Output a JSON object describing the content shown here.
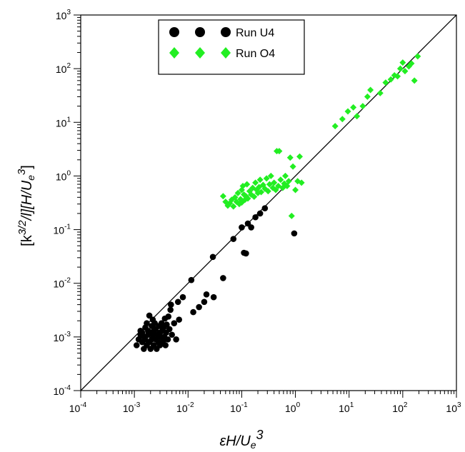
{
  "chart_data": {
    "type": "scatter",
    "xscale": "log",
    "yscale": "log",
    "xlim": [
      0.0001,
      1000
    ],
    "ylim": [
      0.0001,
      1000
    ],
    "x_ticks": [
      {
        "base": "10",
        "exp": "-4"
      },
      {
        "base": "10",
        "exp": "-3"
      },
      {
        "base": "10",
        "exp": "-2"
      },
      {
        "base": "10",
        "exp": "-1"
      },
      {
        "base": "10",
        "exp": "0"
      },
      {
        "base": "10",
        "exp": "1"
      },
      {
        "base": "10",
        "exp": "2"
      },
      {
        "base": "10",
        "exp": "3"
      }
    ],
    "y_ticks": [
      {
        "base": "10",
        "exp": "-4"
      },
      {
        "base": "10",
        "exp": "-3"
      },
      {
        "base": "10",
        "exp": "-2"
      },
      {
        "base": "10",
        "exp": "-1"
      },
      {
        "base": "10",
        "exp": "0"
      },
      {
        "base": "10",
        "exp": "1"
      },
      {
        "base": "10",
        "exp": "2"
      },
      {
        "base": "10",
        "exp": "3"
      }
    ],
    "xlabel": {
      "part1": "εH/U",
      "part2": "e",
      "part3": "3"
    },
    "ylabel": {
      "part1": "[k",
      "part2": "3/2",
      "part3": "/l][H/U",
      "part4": "e",
      "part5": "3",
      "part6": "]"
    },
    "reference_line": {
      "x": [
        0.0001,
        1000
      ],
      "y": [
        0.0001,
        1000
      ]
    },
    "legend_position": "top-left",
    "series": [
      {
        "name": "Run U4",
        "marker": "circle",
        "color": "#000000",
        "points": [
          [
            0.0011,
            0.0007
          ],
          [
            0.0012,
            0.0009
          ],
          [
            0.0013,
            0.0011
          ],
          [
            0.0013,
            0.0013
          ],
          [
            0.0014,
            0.0008
          ],
          [
            0.0014,
            0.0012
          ],
          [
            0.0015,
            0.0006
          ],
          [
            0.0015,
            0.001
          ],
          [
            0.0016,
            0.0015
          ],
          [
            0.0016,
            0.0009
          ],
          [
            0.0017,
            0.0018
          ],
          [
            0.0017,
            0.0007
          ],
          [
            0.0018,
            0.0011
          ],
          [
            0.0018,
            0.0013
          ],
          [
            0.0019,
            0.0008
          ],
          [
            0.0019,
            0.0025
          ],
          [
            0.002,
            0.0012
          ],
          [
            0.002,
            0.0006
          ],
          [
            0.0021,
            0.0016
          ],
          [
            0.0021,
            0.0009
          ],
          [
            0.0022,
            0.0021
          ],
          [
            0.0022,
            0.0011
          ],
          [
            0.0023,
            0.0007
          ],
          [
            0.0023,
            0.0013
          ],
          [
            0.0024,
            0.0018
          ],
          [
            0.0025,
            0.0009
          ],
          [
            0.0025,
            0.0014
          ],
          [
            0.0026,
            0.0006
          ],
          [
            0.0027,
            0.0011
          ],
          [
            0.0028,
            0.0008
          ],
          [
            0.0029,
            0.0016
          ],
          [
            0.003,
            0.0012
          ],
          [
            0.003,
            0.0007
          ],
          [
            0.0031,
            0.001
          ],
          [
            0.0032,
            0.0018
          ],
          [
            0.0033,
            0.0013
          ],
          [
            0.0034,
            0.0008
          ],
          [
            0.0035,
            0.0015
          ],
          [
            0.0036,
            0.001
          ],
          [
            0.0037,
            0.0022
          ],
          [
            0.0038,
            0.0007
          ],
          [
            0.0039,
            0.0012
          ],
          [
            0.004,
            0.0017
          ],
          [
            0.0042,
            0.0009
          ],
          [
            0.0043,
            0.0024
          ],
          [
            0.0045,
            0.0014
          ],
          [
            0.0047,
            0.0032
          ],
          [
            0.0048,
            0.004
          ],
          [
            0.005,
            0.0011
          ],
          [
            0.0055,
            0.0018
          ],
          [
            0.006,
            0.0009
          ],
          [
            0.0065,
            0.0045
          ],
          [
            0.0068,
            0.0021
          ],
          [
            0.008,
            0.0055
          ],
          [
            0.0115,
            0.0115
          ],
          [
            0.0125,
            0.0029
          ],
          [
            0.016,
            0.0036
          ],
          [
            0.02,
            0.0045
          ],
          [
            0.022,
            0.0062
          ],
          [
            0.029,
            0.031
          ],
          [
            0.03,
            0.0055
          ],
          [
            0.045,
            0.0125
          ],
          [
            0.07,
            0.067
          ],
          [
            0.1,
            0.11
          ],
          [
            0.11,
            0.037
          ],
          [
            0.12,
            0.036
          ],
          [
            0.13,
            0.13
          ],
          [
            0.15,
            0.11
          ],
          [
            0.18,
            0.17
          ],
          [
            0.22,
            0.2
          ],
          [
            0.27,
            0.25
          ],
          [
            0.95,
            0.085
          ]
        ]
      },
      {
        "name": "Run O4",
        "marker": "diamond",
        "color": "#22ee22",
        "points": [
          [
            0.045,
            0.42
          ],
          [
            0.05,
            0.33
          ],
          [
            0.055,
            0.28
          ],
          [
            0.06,
            0.31
          ],
          [
            0.065,
            0.36
          ],
          [
            0.07,
            0.27
          ],
          [
            0.075,
            0.4
          ],
          [
            0.08,
            0.33
          ],
          [
            0.085,
            0.48
          ],
          [
            0.09,
            0.3
          ],
          [
            0.095,
            0.37
          ],
          [
            0.1,
            0.55
          ],
          [
            0.1,
            0.32
          ],
          [
            0.105,
            0.65
          ],
          [
            0.11,
            0.45
          ],
          [
            0.115,
            0.36
          ],
          [
            0.12,
            0.42
          ],
          [
            0.125,
            0.7
          ],
          [
            0.13,
            0.38
          ],
          [
            0.14,
            0.52
          ],
          [
            0.15,
            0.45
          ],
          [
            0.16,
            0.6
          ],
          [
            0.17,
            0.41
          ],
          [
            0.18,
            0.75
          ],
          [
            0.19,
            0.55
          ],
          [
            0.2,
            0.48
          ],
          [
            0.21,
            0.62
          ],
          [
            0.22,
            0.85
          ],
          [
            0.23,
            0.5
          ],
          [
            0.25,
            0.68
          ],
          [
            0.27,
            0.58
          ],
          [
            0.29,
            0.9
          ],
          [
            0.31,
            0.52
          ],
          [
            0.33,
            0.7
          ],
          [
            0.35,
            1.0
          ],
          [
            0.38,
            0.6
          ],
          [
            0.4,
            0.75
          ],
          [
            0.43,
            0.55
          ],
          [
            0.45,
            2.9
          ],
          [
            0.48,
            0.65
          ],
          [
            0.5,
            2.9
          ],
          [
            0.53,
            0.85
          ],
          [
            0.58,
            0.6
          ],
          [
            0.62,
            0.72
          ],
          [
            0.65,
            1.0
          ],
          [
            0.7,
            0.65
          ],
          [
            0.75,
            0.8
          ],
          [
            0.8,
            2.2
          ],
          [
            0.85,
            0.18
          ],
          [
            0.9,
            1.5
          ],
          [
            1.0,
            0.55
          ],
          [
            1.1,
            0.8
          ],
          [
            1.2,
            2.3
          ],
          [
            1.3,
            0.75
          ],
          [
            5.5,
            8.5
          ],
          [
            7.5,
            11.5
          ],
          [
            9.5,
            16
          ],
          [
            12,
            19
          ],
          [
            14,
            13
          ],
          [
            18,
            20
          ],
          [
            22,
            30
          ],
          [
            25,
            40
          ],
          [
            38,
            35
          ],
          [
            48,
            55
          ],
          [
            60,
            63
          ],
          [
            70,
            75
          ],
          [
            80,
            72
          ],
          [
            90,
            100
          ],
          [
            100,
            130
          ],
          [
            110,
            90
          ],
          [
            130,
            110
          ],
          [
            145,
            125
          ],
          [
            165,
            60
          ],
          [
            190,
            170
          ]
        ]
      }
    ]
  }
}
